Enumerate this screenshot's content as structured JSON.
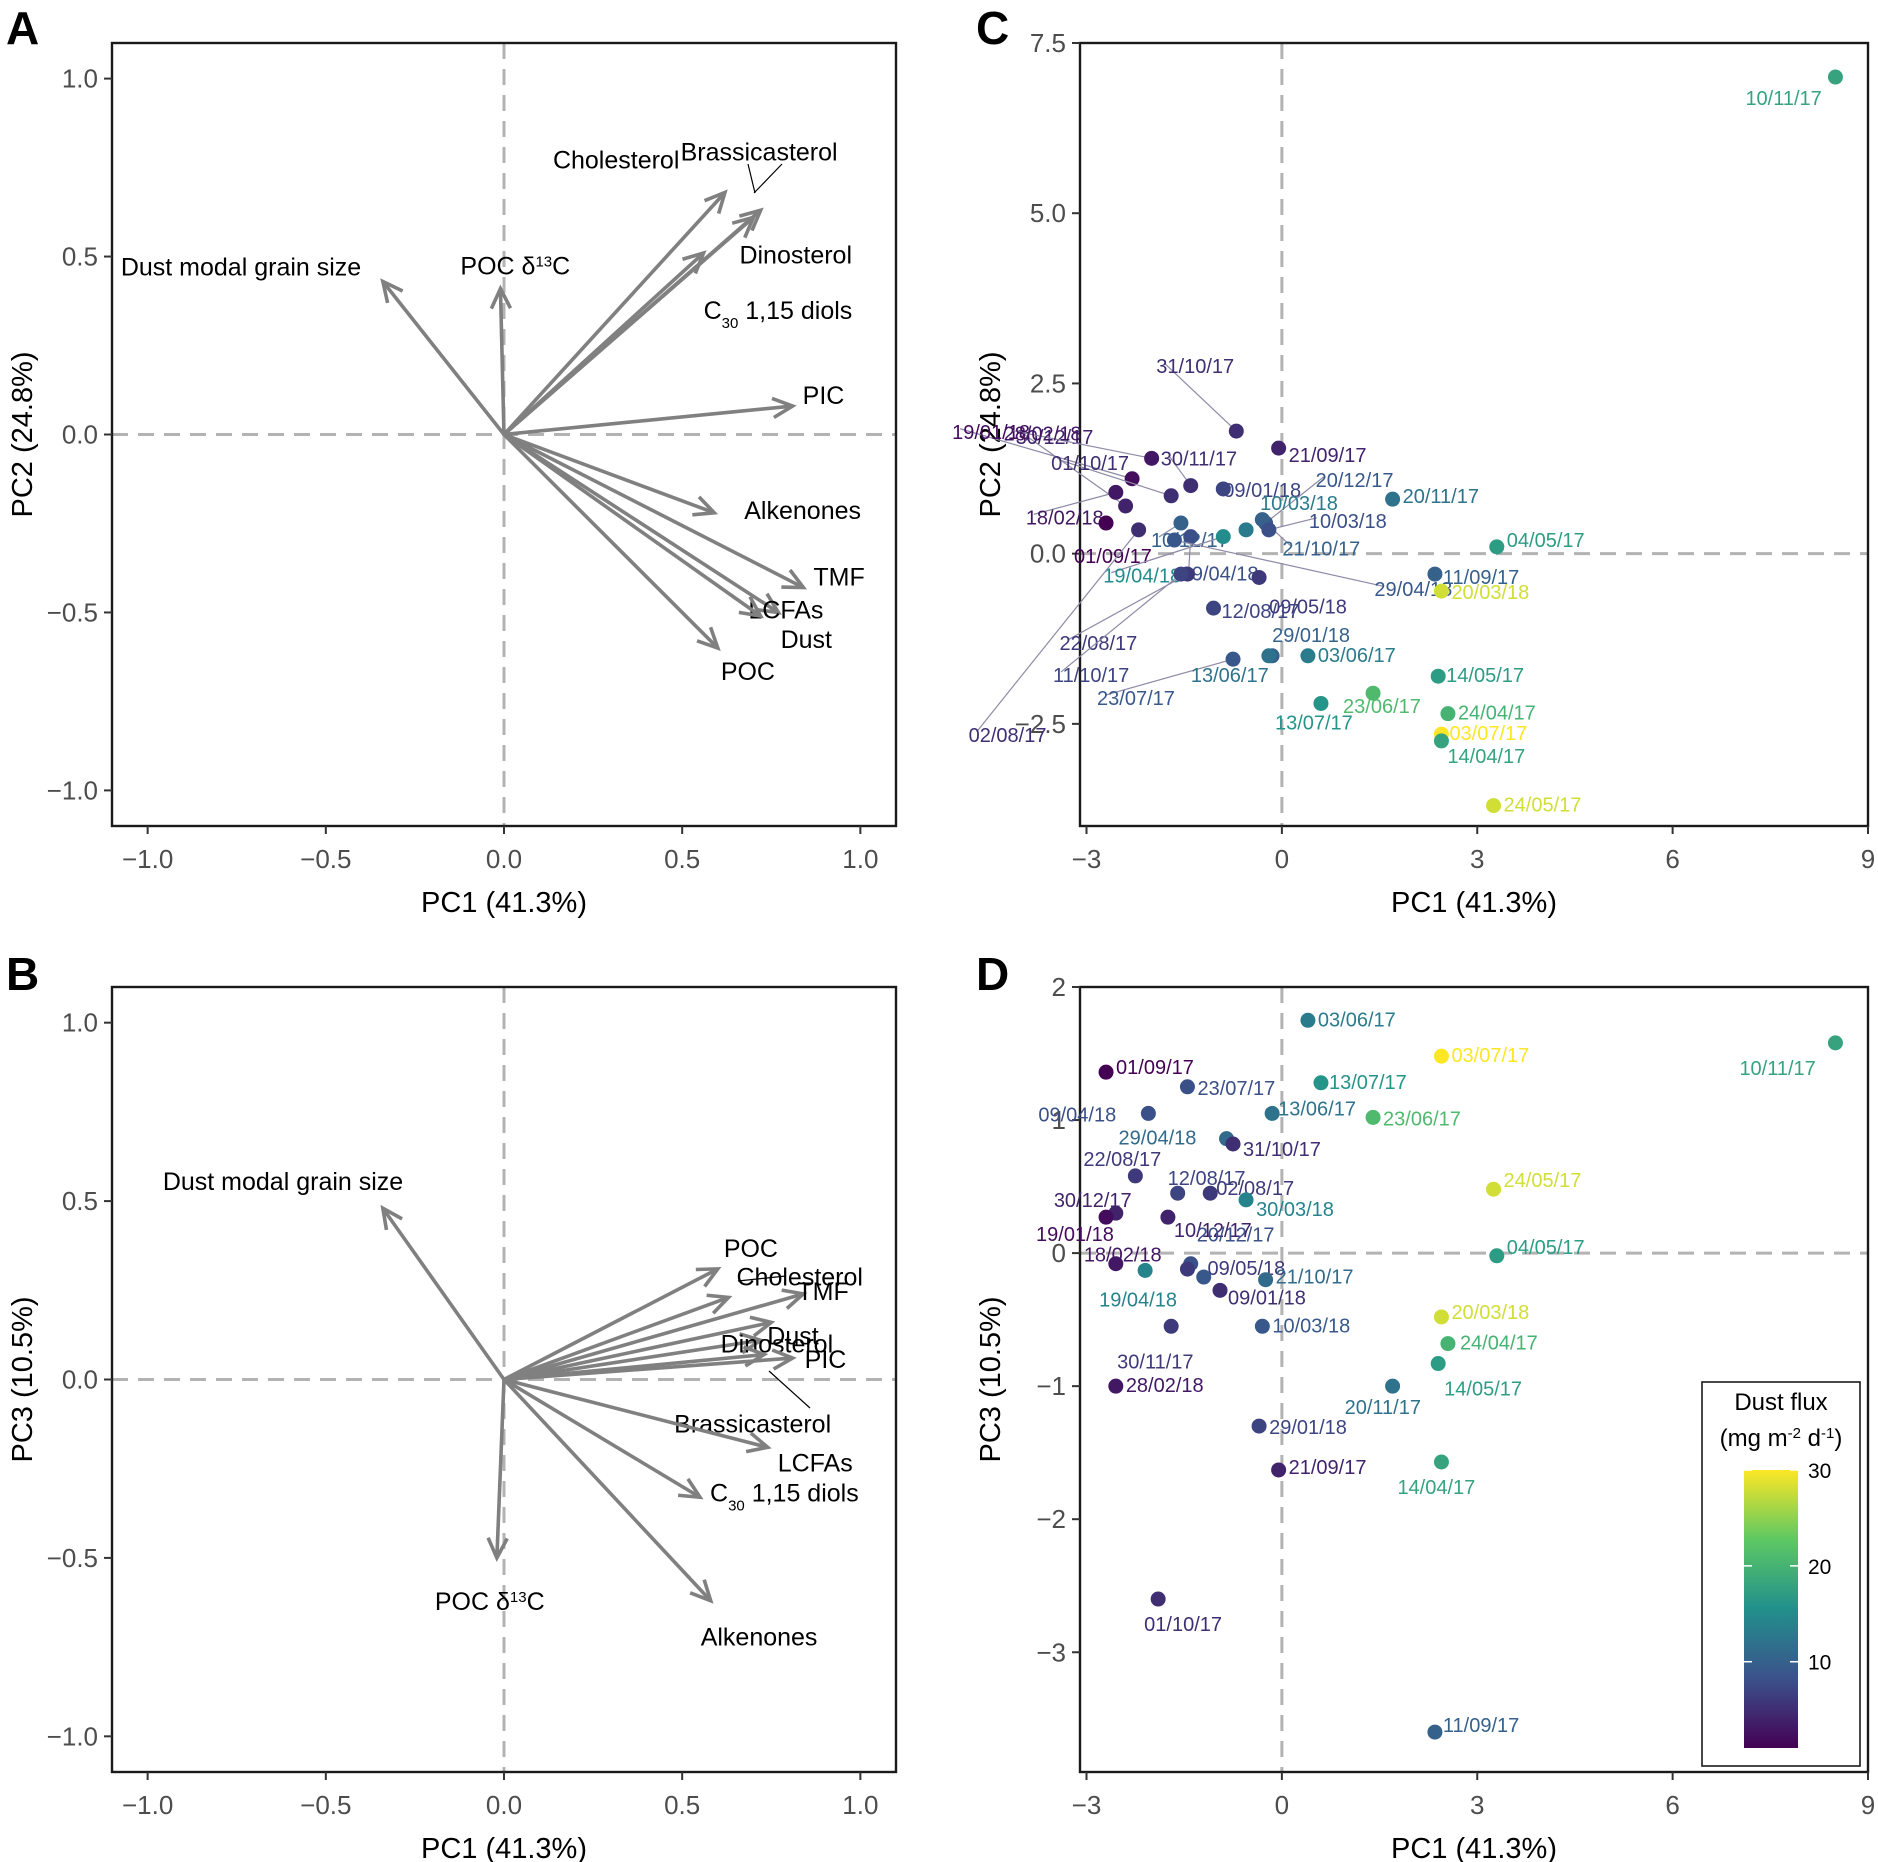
{
  "chart_data": [
    {
      "type": "scatter",
      "subtype": "pca_loadings",
      "panel": "A",
      "xlabel": "PC1 (41.3%)",
      "ylabel": "PC2 (24.8%)",
      "xlim": [
        -1.1,
        1.1
      ],
      "ylim": [
        -1.1,
        1.1
      ],
      "xticks": [
        -1.0,
        -0.5,
        0.0,
        0.5,
        1.0
      ],
      "yticks": [
        -1.0,
        -0.5,
        0.0,
        0.5,
        1.0
      ],
      "tick_labels_x": [
        "−1.0",
        "−0.5",
        "0.0",
        "0.5",
        "1.0"
      ],
      "tick_labels_y": [
        "−1.0",
        "−0.5",
        "0.0",
        "0.5",
        "1.0"
      ],
      "vectors": [
        {
          "name": "Cholesterol",
          "label": "Cholesterol",
          "x": 0.62,
          "y": 0.68
        },
        {
          "name": "Brassicasterol",
          "label": "Brassicasterol",
          "x": 0.72,
          "y": 0.63
        },
        {
          "name": "Dinosterol",
          "label": "Dinosterol",
          "x": 0.7,
          "y": 0.61
        },
        {
          "name": "C30 1,15 diols",
          "label": "1,15 diols",
          "prefix": "C",
          "subscript": "30",
          "x": 0.56,
          "y": 0.51
        },
        {
          "name": "Dust modal grain size",
          "label": "Dust modal grain size",
          "x": -0.34,
          "y": 0.43
        },
        {
          "name": "POC δ13C",
          "label": "POC δ",
          "sup": "13",
          "suffix": "C",
          "x": -0.01,
          "y": 0.41
        },
        {
          "name": "PIC",
          "label": "PIC",
          "x": 0.81,
          "y": 0.08
        },
        {
          "name": "Alkenones",
          "label": "Alkenones",
          "x": 0.59,
          "y": -0.22
        },
        {
          "name": "TMF",
          "label": "TMF",
          "x": 0.84,
          "y": -0.43
        },
        {
          "name": "LCFAs",
          "label": "LCFAs",
          "x": 0.77,
          "y": -0.5
        },
        {
          "name": "Dust",
          "label": "Dust",
          "x": 0.72,
          "y": -0.51
        },
        {
          "name": "POC",
          "label": "POC",
          "x": 0.6,
          "y": -0.6
        }
      ]
    },
    {
      "type": "scatter",
      "subtype": "pca_loadings",
      "panel": "B",
      "xlabel": "PC1 (41.3%)",
      "ylabel": "PC3 (10.5%)",
      "xlim": [
        -1.1,
        1.1
      ],
      "ylim": [
        -1.1,
        1.1
      ],
      "xticks": [
        -1.0,
        -0.5,
        0.0,
        0.5,
        1.0
      ],
      "yticks": [
        -1.0,
        -0.5,
        0.0,
        0.5,
        1.0
      ],
      "tick_labels_x": [
        "−1.0",
        "−0.5",
        "0.0",
        "0.5",
        "1.0"
      ],
      "tick_labels_y": [
        "−1.0",
        "−0.5",
        "0.0",
        "0.5",
        "1.0"
      ],
      "vectors": [
        {
          "name": "Dust modal grain size",
          "label": "Dust modal grain size",
          "x": -0.34,
          "y": 0.48
        },
        {
          "name": "POC",
          "label": "POC",
          "x": 0.6,
          "y": 0.31
        },
        {
          "name": "Cholesterol",
          "label": "Cholesterol",
          "x": 0.63,
          "y": 0.23
        },
        {
          "name": "TMF",
          "label": "TMF",
          "x": 0.84,
          "y": 0.24
        },
        {
          "name": "Dust",
          "label": "Dust",
          "x": 0.75,
          "y": 0.16
        },
        {
          "name": "Dinosterol",
          "label": "Dinosterol",
          "x": 0.72,
          "y": 0.11
        },
        {
          "name": "PIC",
          "label": "PIC",
          "x": 0.81,
          "y": 0.06
        },
        {
          "name": "Brassicasterol",
          "label": "Brassicasterol",
          "x": 0.73,
          "y": 0.07
        },
        {
          "name": "LCFAs",
          "label": "LCFAs",
          "x": 0.74,
          "y": -0.19
        },
        {
          "name": "C30 1,15 diols",
          "label": "1,15 diols",
          "prefix": "C",
          "subscript": "30",
          "x": 0.55,
          "y": -0.33
        },
        {
          "name": "POC δ13C",
          "label": "POC δ",
          "sup": "13",
          "suffix": "C",
          "x": -0.02,
          "y": -0.5
        },
        {
          "name": "Alkenones",
          "label": "Alkenones",
          "x": 0.58,
          "y": -0.62
        }
      ]
    },
    {
      "type": "scatter",
      "panel": "C",
      "xlabel": "PC1 (41.3%)",
      "ylabel": "PC2 (24.8%)",
      "xlim": [
        -3.1,
        9.0
      ],
      "ylim": [
        -4.0,
        7.5
      ],
      "xticks": [
        -3,
        0,
        3,
        6,
        9
      ],
      "yticks": [
        -2.5,
        0.0,
        2.5,
        5.0,
        7.5
      ],
      "tick_labels_x": [
        "−3",
        "0",
        "3",
        "6",
        "9"
      ],
      "tick_labels_y": [
        "−2.5",
        "0.0",
        "2.5",
        "5.0",
        "7.5"
      ],
      "color_variable": "Dust flux (mg m-2 d-1)",
      "points": [
        {
          "date": "10/11/17",
          "pc1": 8.5,
          "pc2": 7.0,
          "flux": 18
        },
        {
          "date": "30/12/17",
          "pc1": -2.4,
          "pc2": 0.7,
          "flux": 4
        },
        {
          "date": "31/10/17",
          "pc1": -0.7,
          "pc2": 1.8,
          "flux": 5
        },
        {
          "date": "19/01/18",
          "pc1": -2.3,
          "pc2": 1.1,
          "flux": 2
        },
        {
          "date": "30/11/17",
          "pc1": -1.4,
          "pc2": 1.0,
          "flux": 5
        },
        {
          "date": "28/02/18",
          "pc1": -2.0,
          "pc2": 1.4,
          "flux": 3
        },
        {
          "date": "21/09/17",
          "pc1": -0.05,
          "pc2": 1.55,
          "flux": 4
        },
        {
          "date": "01/10/17",
          "pc1": -1.7,
          "pc2": 0.85,
          "flux": 5
        },
        {
          "date": "09/01/18",
          "pc1": -0.9,
          "pc2": 0.95,
          "flux": 7
        },
        {
          "date": "20/12/17",
          "pc1": -0.25,
          "pc2": 0.45,
          "flux": 9
        },
        {
          "date": "18/02/18",
          "pc1": -2.55,
          "pc2": 0.9,
          "flux": 3
        },
        {
          "date": "10/12/17",
          "pc1": -1.55,
          "pc2": 0.45,
          "flux": 10
        },
        {
          "date": "10/03/18",
          "pc1": -0.55,
          "pc2": 0.35,
          "flux": 13
        },
        {
          "date": "20/11/17",
          "pc1": 1.7,
          "pc2": 0.8,
          "flux": 12
        },
        {
          "date": "01/09/17",
          "pc1": -2.7,
          "pc2": 0.45,
          "flux": 1
        },
        {
          "date": "21/10/17",
          "pc1": -0.3,
          "pc2": 0.5,
          "flux": 10
        },
        {
          "date": "10/03/18b",
          "pc1": -0.2,
          "pc2": 0.35,
          "flux": 8
        },
        {
          "date": "04/05/17",
          "pc1": 3.3,
          "pc2": 0.1,
          "flux": 17
        },
        {
          "date": "19/04/18",
          "pc1": -0.9,
          "pc2": 0.25,
          "flux": 15
        },
        {
          "date": "09/04/18",
          "pc1": -1.4,
          "pc2": 0.25,
          "flux": 8
        },
        {
          "date": "29/04/18",
          "pc1": -1.65,
          "pc2": 0.2,
          "flux": 9
        },
        {
          "date": "11/09/17",
          "pc1": 2.35,
          "pc2": -0.3,
          "flux": 10
        },
        {
          "date": "09/05/18",
          "pc1": -0.35,
          "pc2": -0.35,
          "flux": 6
        },
        {
          "date": "20/03/18",
          "pc1": 2.45,
          "pc2": -0.55,
          "flux": 28
        },
        {
          "date": "22/08/17",
          "pc1": -1.45,
          "pc2": -0.3,
          "flux": 6
        },
        {
          "date": "11/10/17",
          "pc1": -1.55,
          "pc2": -0.3,
          "flux": 7
        },
        {
          "date": "12/08/17",
          "pc1": -1.05,
          "pc2": -0.8,
          "flux": 7
        },
        {
          "date": "02/08/17",
          "pc1": -2.2,
          "pc2": 0.35,
          "flux": 5
        },
        {
          "date": "29/01/18",
          "pc1": -0.15,
          "pc2": -1.5,
          "flux": 10
        },
        {
          "date": "23/07/17",
          "pc1": -0.75,
          "pc2": -1.55,
          "flux": 9
        },
        {
          "date": "03/06/17",
          "pc1": 0.4,
          "pc2": -1.5,
          "flux": 13
        },
        {
          "date": "13/06/17",
          "pc1": -0.2,
          "pc2": -1.5,
          "flux": 12
        },
        {
          "date": "23/06/17",
          "pc1": 1.4,
          "pc2": -2.05,
          "flux": 21
        },
        {
          "date": "14/05/17",
          "pc1": 2.4,
          "pc2": -1.8,
          "flux": 17
        },
        {
          "date": "13/07/17",
          "pc1": 0.6,
          "pc2": -2.2,
          "flux": 16
        },
        {
          "date": "24/04/17",
          "pc1": 2.55,
          "pc2": -2.35,
          "flux": 20
        },
        {
          "date": "03/07/17",
          "pc1": 2.45,
          "pc2": -2.65,
          "flux": 30
        },
        {
          "date": "14/04/17",
          "pc1": 2.45,
          "pc2": -2.75,
          "flux": 18
        },
        {
          "date": "24/05/17",
          "pc1": 3.25,
          "pc2": -3.7,
          "flux": 28
        }
      ]
    },
    {
      "type": "scatter",
      "panel": "D",
      "xlabel": "PC1 (41.3%)",
      "ylabel": "PC3 (10.5%)",
      "xlim": [
        -3.1,
        9.0
      ],
      "ylim": [
        -3.9,
        2.0
      ],
      "xticks": [
        -3,
        0,
        3,
        6,
        9
      ],
      "yticks": [
        -3,
        -2,
        -1,
        0,
        1,
        2
      ],
      "tick_labels_x": [
        "−3",
        "0",
        "3",
        "6",
        "9"
      ],
      "tick_labels_y": [
        "−3",
        "−2",
        "−1",
        "0",
        "1",
        "2"
      ],
      "color_variable": "Dust flux (mg m-2 d-1)",
      "points": [
        {
          "date": "03/06/17",
          "pc1": 0.4,
          "pc3": 1.75,
          "flux": 13
        },
        {
          "date": "10/11/17",
          "pc1": 8.5,
          "pc3": 1.58,
          "flux": 18
        },
        {
          "date": "03/07/17",
          "pc1": 2.45,
          "pc3": 1.48,
          "flux": 30
        },
        {
          "date": "01/09/17",
          "pc1": -2.7,
          "pc3": 1.36,
          "flux": 1
        },
        {
          "date": "23/07/17",
          "pc1": -1.45,
          "pc3": 1.25,
          "flux": 8
        },
        {
          "date": "13/07/17",
          "pc1": 0.6,
          "pc3": 1.28,
          "flux": 16
        },
        {
          "date": "09/04/18",
          "pc1": -2.05,
          "pc3": 1.05,
          "flux": 8
        },
        {
          "date": "13/06/17",
          "pc1": -0.15,
          "pc3": 1.05,
          "flux": 12
        },
        {
          "date": "23/06/17",
          "pc1": 1.4,
          "pc3": 1.02,
          "flux": 21
        },
        {
          "date": "29/04/18",
          "pc1": -0.85,
          "pc3": 0.86,
          "flux": 11
        },
        {
          "date": "31/10/17",
          "pc1": -0.75,
          "pc3": 0.82,
          "flux": 5
        },
        {
          "date": "22/08/17",
          "pc1": -2.25,
          "pc3": 0.58,
          "flux": 6
        },
        {
          "date": "12/08/17",
          "pc1": -1.6,
          "pc3": 0.45,
          "flux": 7
        },
        {
          "date": "02/08/17",
          "pc1": -1.1,
          "pc3": 0.45,
          "flux": 6
        },
        {
          "date": "30/03/18",
          "pc1": -0.55,
          "pc3": 0.4,
          "flux": 14
        },
        {
          "date": "24/05/17",
          "pc1": 3.25,
          "pc3": 0.48,
          "flux": 28
        },
        {
          "date": "30/12/17",
          "pc1": -2.55,
          "pc3": 0.3,
          "flux": 4
        },
        {
          "date": "19/01/18",
          "pc1": -2.7,
          "pc3": 0.27,
          "flux": 2
        },
        {
          "date": "10/12/17",
          "pc1": -1.75,
          "pc3": 0.27,
          "flux": 4
        },
        {
          "date": "04/05/17",
          "pc1": 3.3,
          "pc3": -0.02,
          "flux": 17
        },
        {
          "date": "18/02/18",
          "pc1": -2.55,
          "pc3": -0.08,
          "flux": 3
        },
        {
          "date": "20/12/17",
          "pc1": -1.4,
          "pc3": -0.08,
          "flux": 8
        },
        {
          "date": "09/05/18",
          "pc1": -1.45,
          "pc3": -0.12,
          "flux": 6
        },
        {
          "date": "19/04/18",
          "pc1": -2.1,
          "pc3": -0.13,
          "flux": 14
        },
        {
          "date": "21/10/17",
          "pc1": -1.2,
          "pc3": -0.18,
          "flux": 9
        },
        {
          "date": "21/10/17b",
          "pc1": -0.25,
          "pc3": -0.2,
          "flux": 11
        },
        {
          "date": "09/01/18",
          "pc1": -0.95,
          "pc3": -0.28,
          "flux": 5
        },
        {
          "date": "20/03/18",
          "pc1": 2.45,
          "pc3": -0.48,
          "flux": 28
        },
        {
          "date": "30/11/17",
          "pc1": -1.7,
          "pc3": -0.55,
          "flux": 6
        },
        {
          "date": "10/03/18",
          "pc1": -0.3,
          "pc3": -0.55,
          "flux": 9
        },
        {
          "date": "24/04/17",
          "pc1": 2.55,
          "pc3": -0.68,
          "flux": 20
        },
        {
          "date": "14/05/17",
          "pc1": 2.4,
          "pc3": -0.83,
          "flux": 17
        },
        {
          "date": "20/11/17",
          "pc1": 1.7,
          "pc3": -1.0,
          "flux": 12
        },
        {
          "date": "28/02/18",
          "pc1": -2.55,
          "pc3": -1.0,
          "flux": 3
        },
        {
          "date": "29/01/18",
          "pc1": -0.35,
          "pc3": -1.3,
          "flux": 7
        },
        {
          "date": "14/04/17",
          "pc1": 2.45,
          "pc3": -1.57,
          "flux": 18
        },
        {
          "date": "21/09/17",
          "pc1": -0.05,
          "pc3": -1.63,
          "flux": 4
        },
        {
          "date": "01/10/17",
          "pc1": -1.9,
          "pc3": -2.6,
          "flux": 5
        },
        {
          "date": "11/09/17",
          "pc1": 2.35,
          "pc3": -3.6,
          "flux": 10
        }
      ]
    }
  ],
  "panels": {
    "A": "A",
    "B": "B",
    "C": "C",
    "D": "D"
  },
  "legend": {
    "title_line1": "Dust flux",
    "title_line2_prefix": "(mg m",
    "title_sup1": "-2",
    "title_mid": " d",
    "title_sup2": "-1",
    "title_suffix": ")",
    "ticks": [
      10,
      20,
      30
    ],
    "tick_labels": [
      "10",
      "20",
      "30"
    ],
    "range": [
      1,
      30
    ],
    "colors": [
      "#440154",
      "#3b528b",
      "#21908c",
      "#5dc863",
      "#fde725"
    ]
  }
}
